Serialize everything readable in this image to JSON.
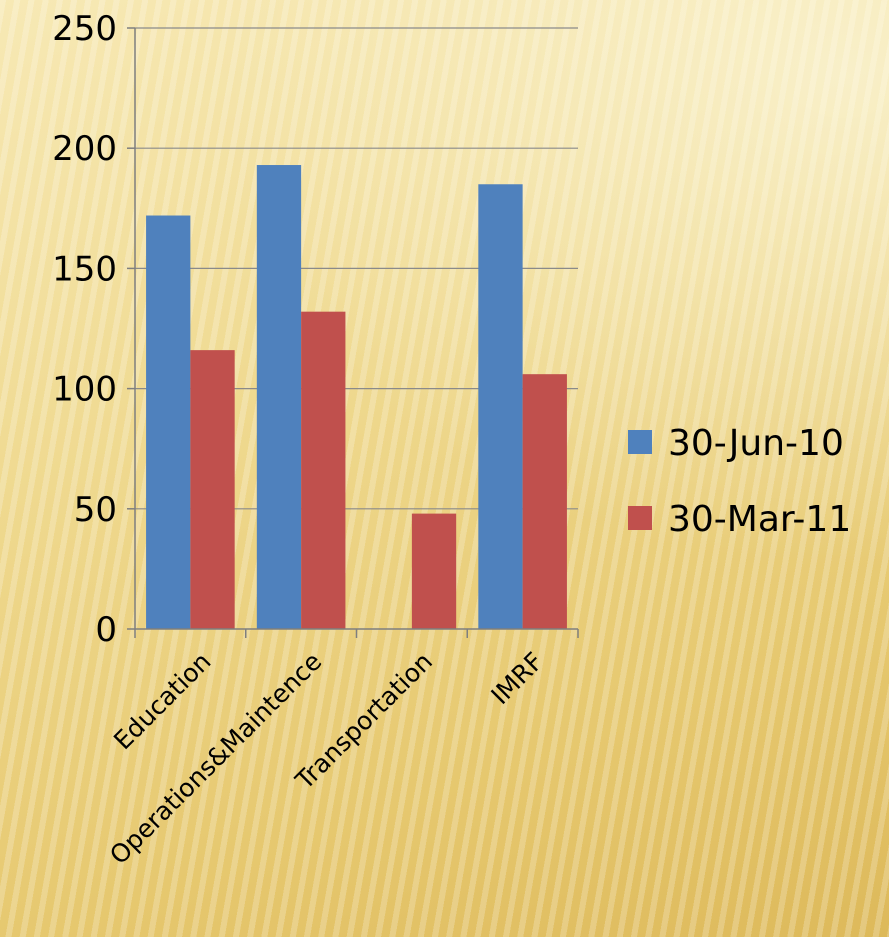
{
  "chart_data": {
    "type": "bar",
    "categories": [
      "Education",
      "Operations&Maintence",
      "Transportation",
      "IMRF"
    ],
    "series": [
      {
        "name": "30-Jun-10",
        "color": "#4f81bd",
        "values": [
          172,
          193,
          0,
          185
        ]
      },
      {
        "name": "30-Mar-11",
        "color": "#c0504d",
        "values": [
          116,
          132,
          48,
          106
        ]
      }
    ],
    "yticks": [
      0,
      50,
      100,
      150,
      200,
      250
    ],
    "ylim": [
      0,
      250
    ],
    "grid": true,
    "legend": "right",
    "title": "",
    "xlabel": "",
    "ylabel": ""
  }
}
